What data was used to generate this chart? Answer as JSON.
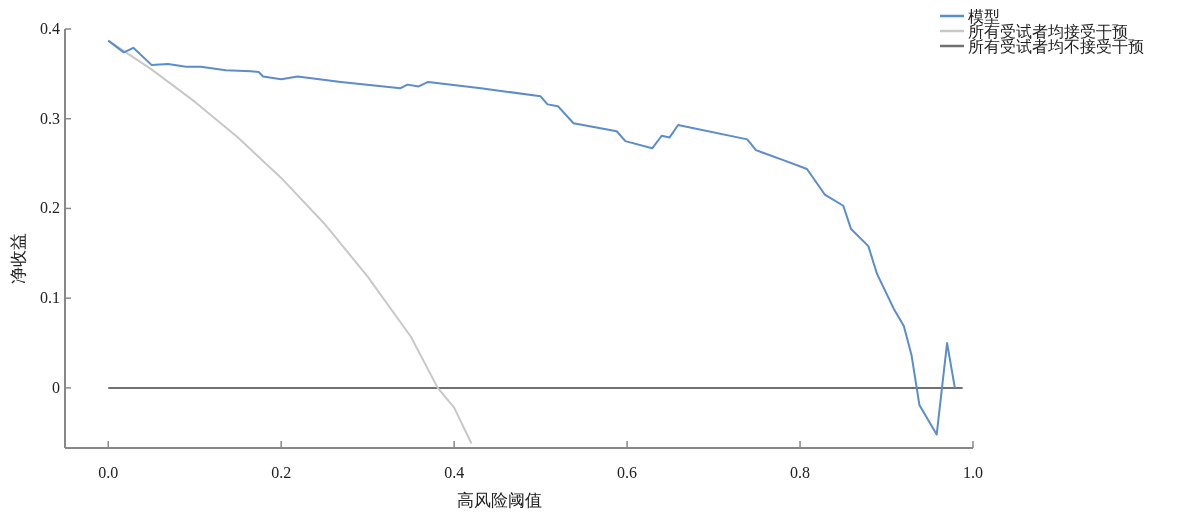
{
  "chart_data": {
    "type": "line",
    "xlabel": "高风险阈值",
    "ylabel": "净收益",
    "xlim": [
      -0.05,
      1.0
    ],
    "ylim": [
      -0.067,
      0.4
    ],
    "xticks": [
      {
        "value": 0,
        "label": "0.0"
      },
      0.2,
      0.4,
      0.6,
      0.8,
      {
        "value": 1,
        "label": "1.0"
      }
    ],
    "yticks": [
      0,
      0.1,
      0.2,
      0.3,
      0.4
    ],
    "grid": false,
    "legend": "top right",
    "marker": "none",
    "line_style": "solid",
    "series": [
      {
        "name": "模型",
        "color": "#5b8ccc",
        "x": [
          0,
          0.018,
          0.029,
          0.05,
          0.069,
          0.09,
          0.107,
          0.136,
          0.165,
          0.174,
          0.179,
          0.2,
          0.219,
          0.269,
          0.338,
          0.346,
          0.359,
          0.37,
          0.431,
          0.5,
          0.508,
          0.52,
          0.538,
          0.588,
          0.598,
          0.629,
          0.64,
          0.649,
          0.659,
          0.739,
          0.749,
          0.783,
          0.808,
          0.829,
          0.85,
          0.859,
          0.879,
          0.889,
          0.909,
          0.92,
          0.929,
          0.938,
          0.958,
          0.97,
          0.979
        ],
        "values": [
          0.387,
          0.374,
          0.379,
          0.36,
          0.361,
          0.358,
          0.358,
          0.354,
          0.353,
          0.352,
          0.347,
          0.344,
          0.347,
          0.341,
          0.334,
          0.338,
          0.336,
          0.341,
          0.334,
          0.325,
          0.316,
          0.314,
          0.295,
          0.286,
          0.275,
          0.267,
          0.281,
          0.279,
          0.293,
          0.277,
          0.265,
          0.253,
          0.244,
          0.215,
          0.203,
          0.177,
          0.158,
          0.127,
          0.087,
          0.069,
          0.036,
          -0.019,
          -0.052,
          0.05,
          0
        ]
      },
      {
        "name": "所有受试者均接受干预",
        "color": "#c8c8c8",
        "x": [
          0,
          0.05,
          0.1,
          0.15,
          0.2,
          0.25,
          0.3,
          0.35,
          0.381,
          0.4,
          0.42
        ],
        "values": [
          0.387,
          0.355,
          0.319,
          0.279,
          0.234,
          0.183,
          0.124,
          0.057,
          0.0,
          -0.022,
          -0.062
        ]
      },
      {
        "name": "所有受试者均不接受干预",
        "color": "#707070",
        "x": [
          0,
          0.988
        ],
        "values": [
          0,
          0
        ]
      }
    ]
  }
}
